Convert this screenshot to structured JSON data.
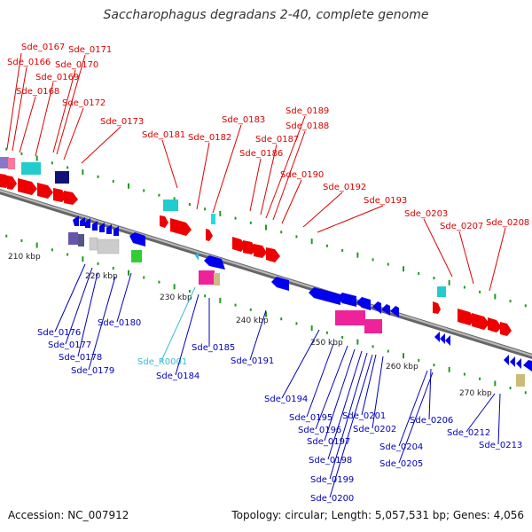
{
  "title": "Saccharophagus degradans 2-40, complete genome",
  "footer": {
    "accession": "Accession: NC_007912",
    "summary": "Topology: circular; Length: 5,057,531 bp; Genes: 4,056"
  },
  "colors": {
    "forward_label": "#dd0000",
    "reverse_label": "#0000bb",
    "rna_label": "#33bbdd",
    "backbone": "#888888",
    "tick": "#229922"
  },
  "kbp_markers": [
    "210 kbp",
    "220 kbp",
    "230 kbp",
    "240 kbp",
    "250 kbp",
    "260 kbp",
    "270 kbp"
  ],
  "forward_labels": [
    "Sde_0167",
    "Sde_0166",
    "Sde_0171",
    "Sde_0170",
    "Sde_0169",
    "Sde_0168",
    "Sde_0172",
    "Sde_0173",
    "Sde_0181",
    "Sde_0183",
    "Sde_0182",
    "Sde_0189",
    "Sde_0188",
    "Sde_0187",
    "Sde_0186",
    "Sde_0190",
    "Sde_0192",
    "Sde_0193",
    "Sde_0203",
    "Sde_0207",
    "Sde_0208"
  ],
  "reverse_labels": [
    "Sde_0176",
    "Sde_0177",
    "Sde_0178",
    "Sde_0179",
    "Sde_0180",
    "Sde_R0001",
    "Sde_0184",
    "Sde_0185",
    "Sde_0191",
    "Sde_0194",
    "Sde_0195",
    "Sde_0196",
    "Sde_0197",
    "Sde_0198",
    "Sde_0199",
    "Sde_0200",
    "Sde_0201",
    "Sde_0202",
    "Sde_0204",
    "Sde_0205",
    "Sde_0206",
    "Sde_0212",
    "Sde_0213"
  ]
}
